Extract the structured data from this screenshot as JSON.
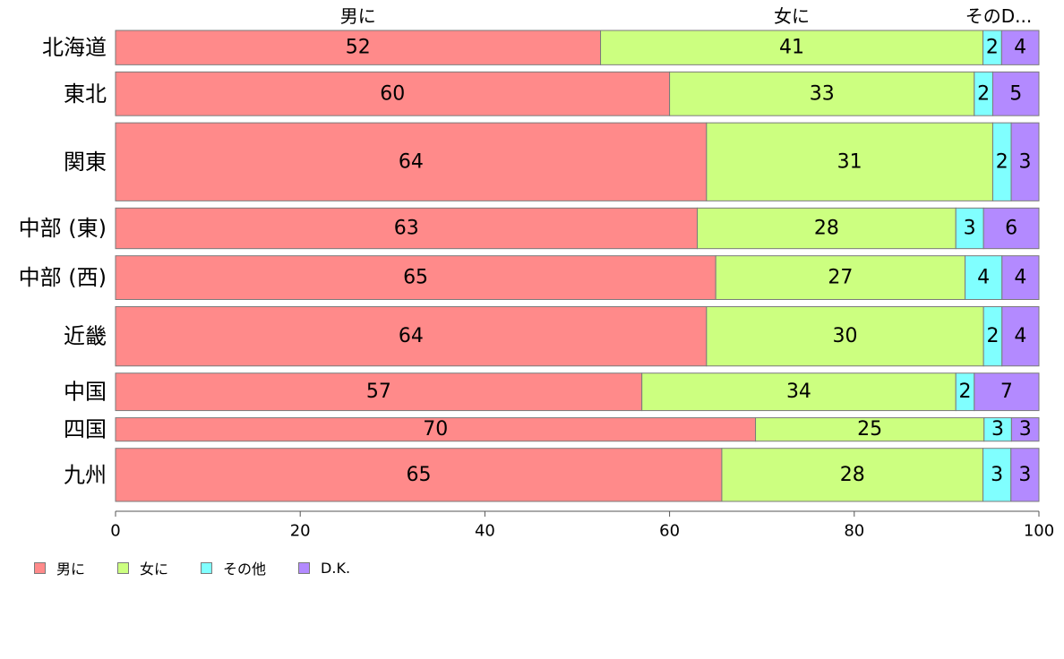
{
  "chart_data": {
    "type": "bar",
    "orientation": "horizontal",
    "stacked": true,
    "categories": [
      "北海道",
      "東北",
      "関東",
      "中部 (東)",
      "中部 (西)",
      "近畿",
      "中国",
      "四国",
      "九州"
    ],
    "series": [
      {
        "name": "男に",
        "values": [
          52,
          60,
          64,
          63,
          65,
          64,
          57,
          70,
          65
        ],
        "color": "#FF8A8A"
      },
      {
        "name": "女に",
        "values": [
          41,
          33,
          31,
          28,
          27,
          30,
          34,
          25,
          28
        ],
        "color": "#CCFF80"
      },
      {
        "name": "その他",
        "values": [
          2,
          2,
          2,
          3,
          4,
          2,
          2,
          3,
          3
        ],
        "color": "#80FFFF"
      },
      {
        "name": "D.K.",
        "values": [
          4,
          5,
          3,
          6,
          4,
          4,
          7,
          3,
          3
        ],
        "color": "#B38AFF"
      }
    ],
    "top_labels": [
      "男に",
      "女に",
      "そのD..."
    ],
    "xlim": [
      0,
      100
    ],
    "x_ticks": [
      0,
      20,
      40,
      60,
      80,
      100
    ],
    "row_weights": [
      1.1,
      1.4,
      2.5,
      1.3,
      1.4,
      1.9,
      1.2,
      0.75,
      1.7
    ],
    "grid": false,
    "legend_position": "bottom-left"
  }
}
